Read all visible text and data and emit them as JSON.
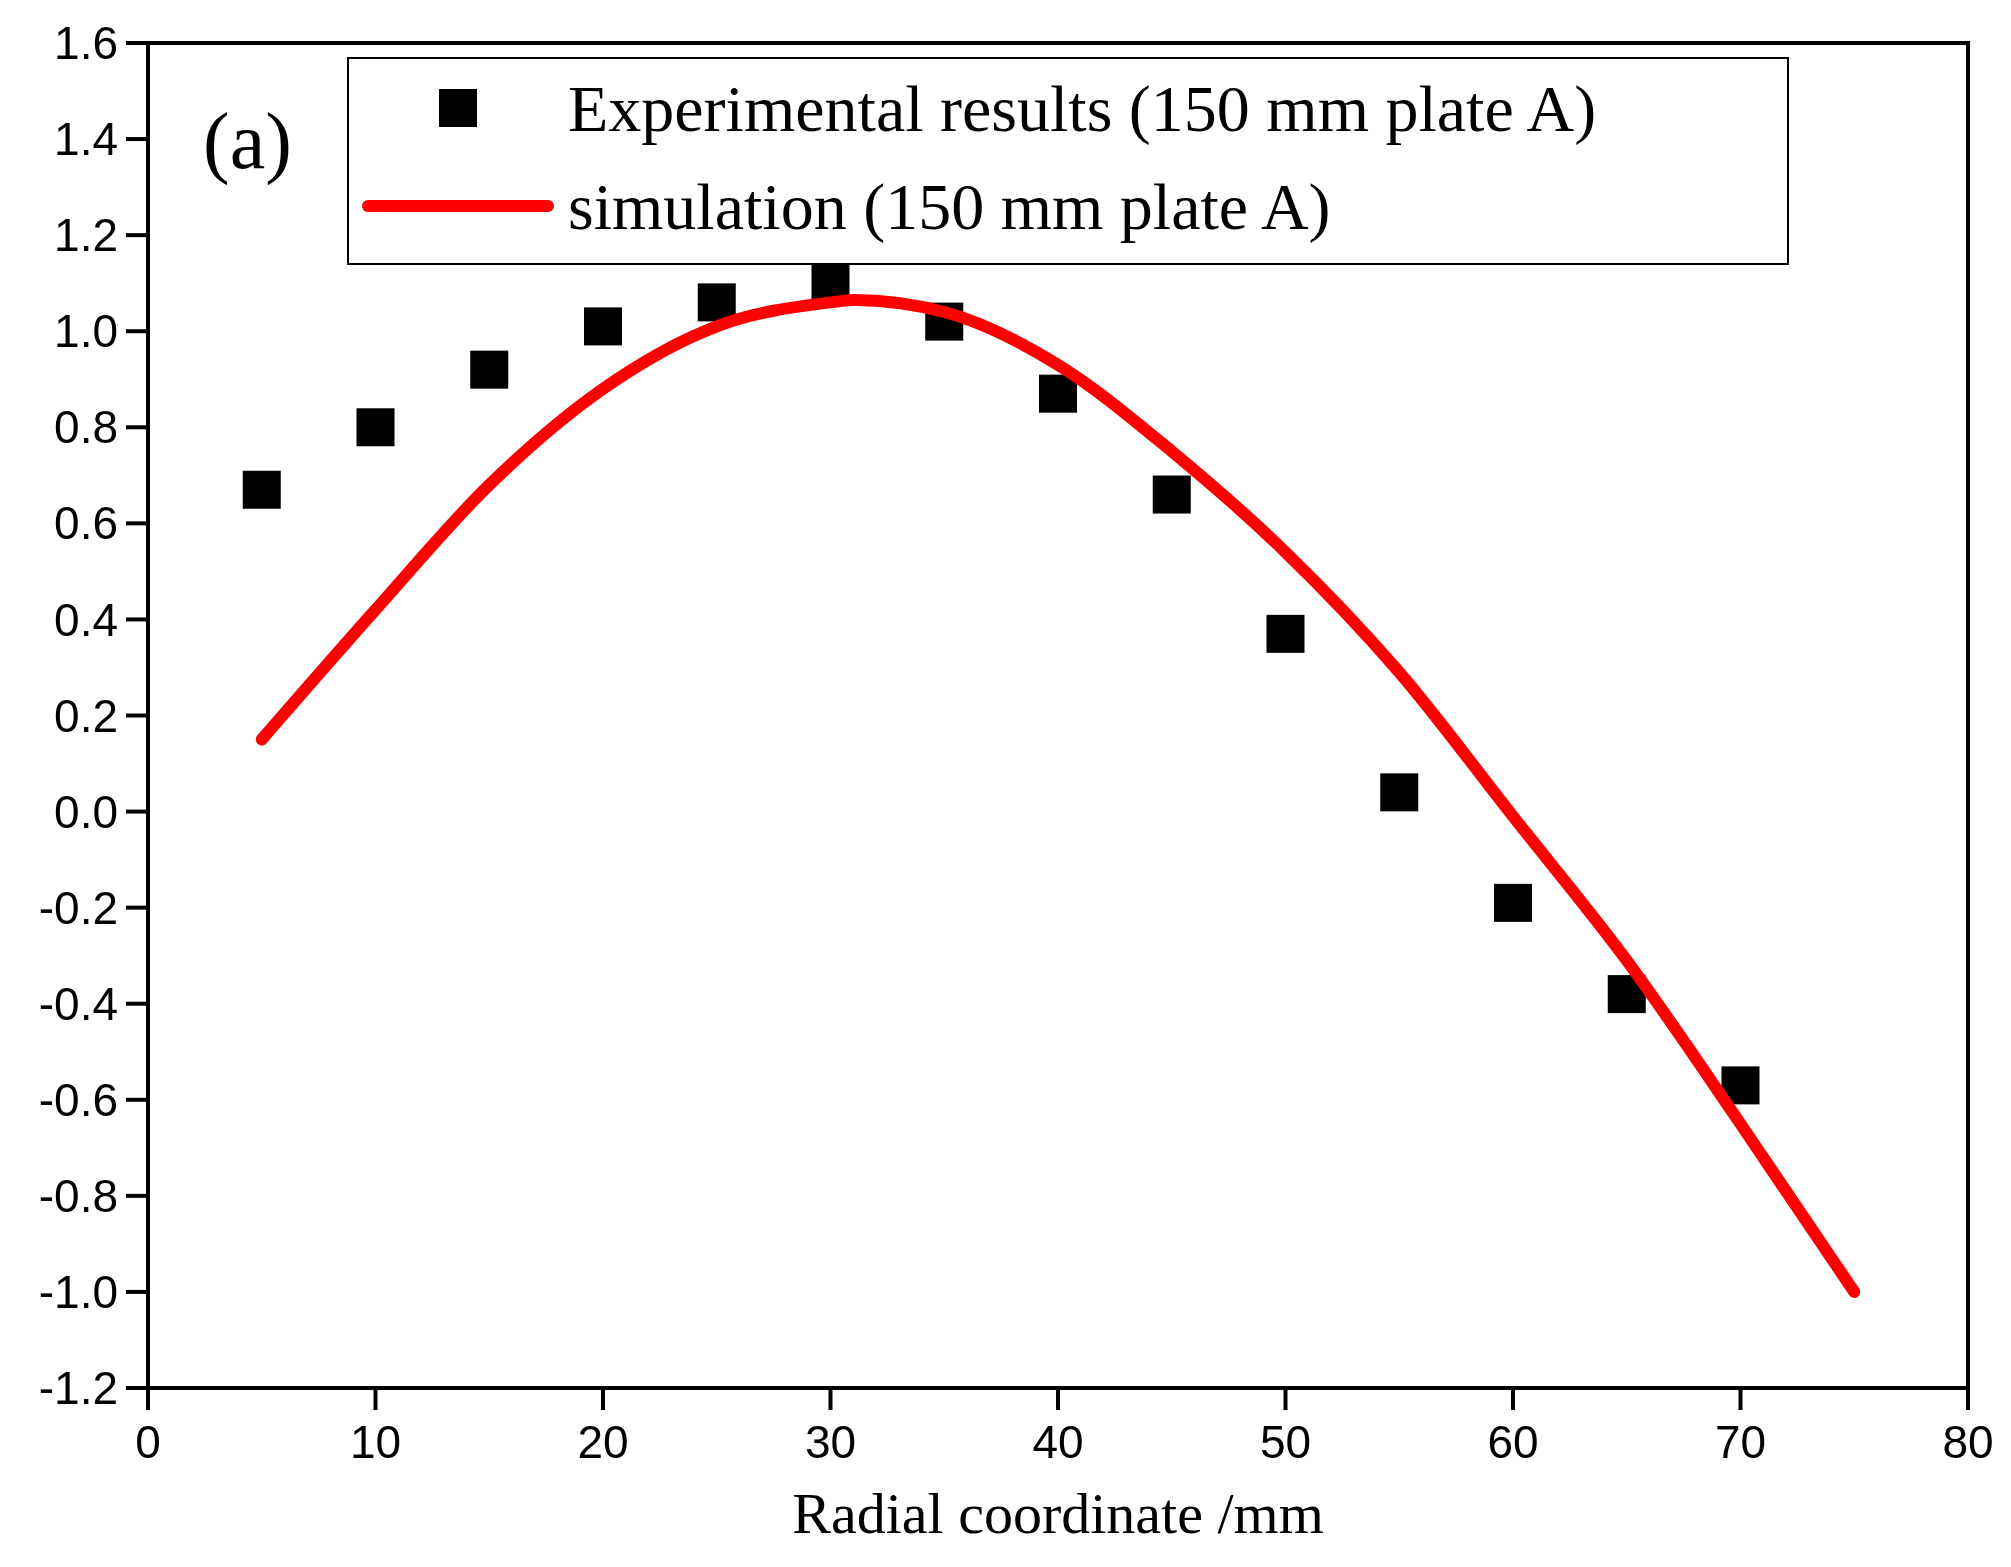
{
  "chart_data": {
    "type": "scatter",
    "xlabel": "Radial coordinate /mm",
    "annotations": [
      "(a)"
    ],
    "xlim": [
      0,
      80
    ],
    "ylim": [
      -1.2,
      1.6
    ],
    "xticks": [
      0,
      10,
      20,
      30,
      40,
      50,
      60,
      70,
      80
    ],
    "yticks": [
      -1.2,
      {
        "value": -1.0,
        "label": "-1.0"
      },
      -0.8,
      -0.6,
      -0.4,
      -0.2,
      {
        "value": 0,
        "label": "0.0"
      },
      0.2,
      0.4,
      0.6,
      0.8,
      {
        "value": 1,
        "label": "1.0"
      },
      1.2,
      1.4,
      1.6
    ],
    "grid": false,
    "legend": "top",
    "series": [
      {
        "name": "Experimental results (150 mm plate A)",
        "type": "scatter",
        "marker": "square",
        "color": "#000000",
        "x": [
          5,
          10,
          15,
          20,
          25,
          30,
          35,
          40,
          45,
          50,
          55,
          60,
          65,
          70
        ],
        "values": [
          0.67,
          0.8,
          0.92,
          1.01,
          1.06,
          1.1,
          1.02,
          0.87,
          0.66,
          0.37,
          0.04,
          -0.19,
          -0.38,
          -0.57
        ]
      },
      {
        "name": "simulation (150 mm plate A)",
        "type": "line",
        "marker": "none",
        "line_style": "solid",
        "color": "#ff0000",
        "x": [
          5,
          10,
          15,
          20,
          25,
          30,
          31,
          35,
          40,
          45,
          50,
          55,
          60,
          65,
          70,
          75
        ],
        "values": [
          0.15,
          0.42,
          0.68,
          0.88,
          1.01,
          1.06,
          1.065,
          1.04,
          0.93,
          0.75,
          0.54,
          0.29,
          -0.01,
          -0.31,
          -0.65,
          -1.0
        ]
      }
    ]
  }
}
